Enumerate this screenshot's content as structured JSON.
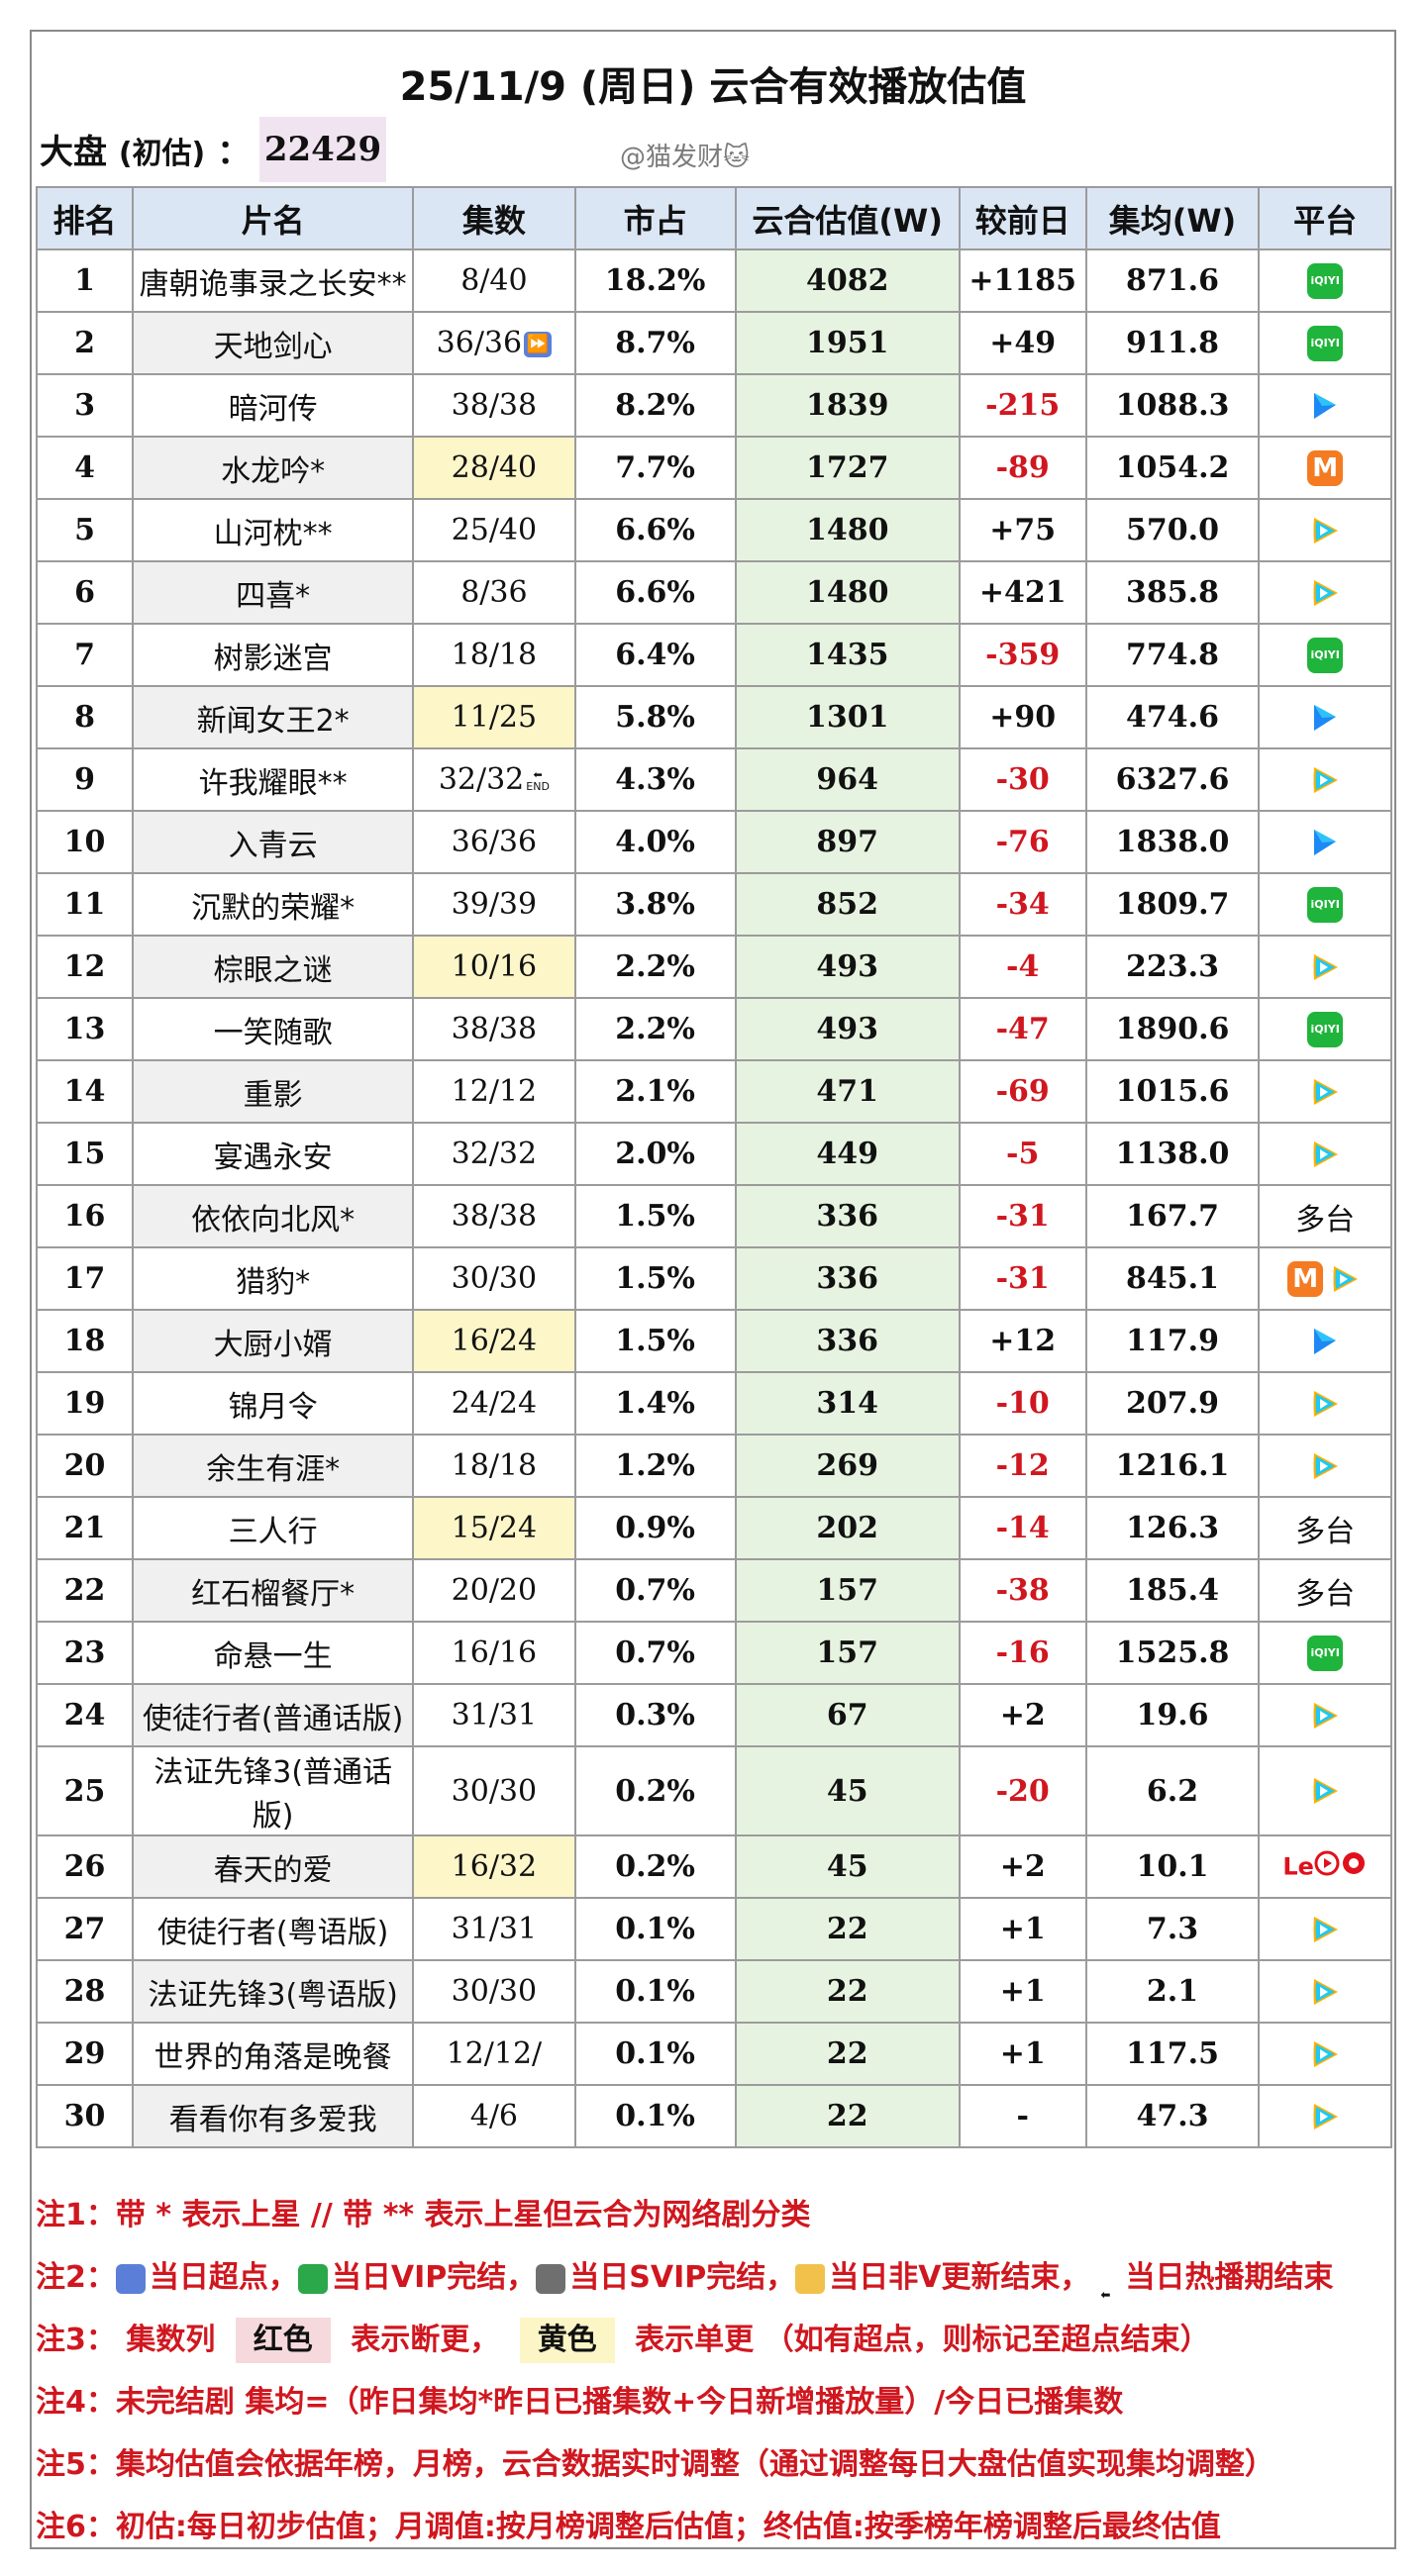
{
  "header": {
    "title": "25/11/9 (周日) 云合有效播放估值",
    "dapan_label": "大盘",
    "dapan_sub": "(初估)",
    "dapan_colon": "：",
    "dapan_value": "22429",
    "watermark": "@猫发财🐱"
  },
  "table": {
    "headers": [
      "排名",
      "片名",
      "集数",
      "市占",
      "云合估值(W)",
      "较前日",
      "集均(W)",
      "平台"
    ],
    "rows": [
      {
        "rank": "1",
        "name": "唐朝诡事录之长安**",
        "eps": "8/40",
        "eps_mark": "",
        "eps_hl": "",
        "share": "18.2%",
        "est": "4082",
        "change": "+1185",
        "neg": false,
        "avg": "871.6",
        "platform": [
          "iqiyi"
        ]
      },
      {
        "rank": "2",
        "name": "天地剑心",
        "eps": "36/36",
        "eps_mark": "⏩",
        "eps_hl": "",
        "share": "8.7%",
        "est": "1951",
        "change": "+49",
        "neg": false,
        "avg": "911.8",
        "platform": [
          "iqiyi"
        ]
      },
      {
        "rank": "3",
        "name": "暗河传",
        "eps": "38/38",
        "eps_mark": "",
        "eps_hl": "",
        "share": "8.2%",
        "est": "1839",
        "change": "-215",
        "neg": true,
        "avg": "1088.3",
        "platform": [
          "youku"
        ]
      },
      {
        "rank": "4",
        "name": "水龙吟*",
        "eps": "28/40",
        "eps_mark": "",
        "eps_hl": "yellow",
        "share": "7.7%",
        "est": "1727",
        "change": "-89",
        "neg": true,
        "avg": "1054.2",
        "platform": [
          "mango"
        ]
      },
      {
        "rank": "5",
        "name": "山河枕**",
        "eps": "25/40",
        "eps_mark": "",
        "eps_hl": "",
        "share": "6.6%",
        "est": "1480",
        "change": "+75",
        "neg": false,
        "avg": "570.0",
        "platform": [
          "tencent"
        ]
      },
      {
        "rank": "6",
        "name": "四喜*",
        "eps": "8/36",
        "eps_mark": "",
        "eps_hl": "",
        "share": "6.6%",
        "est": "1480",
        "change": "+421",
        "neg": false,
        "avg": "385.8",
        "platform": [
          "tencent"
        ]
      },
      {
        "rank": "7",
        "name": "树影迷宫",
        "eps": "18/18",
        "eps_mark": "",
        "eps_hl": "",
        "share": "6.4%",
        "est": "1435",
        "change": "-359",
        "neg": true,
        "avg": "774.8",
        "platform": [
          "iqiyi"
        ]
      },
      {
        "rank": "8",
        "name": "新闻女王2*",
        "eps": "11/25",
        "eps_mark": "",
        "eps_hl": "yellow",
        "share": "5.8%",
        "est": "1301",
        "change": "+90",
        "neg": false,
        "avg": "474.6",
        "platform": [
          "youku"
        ]
      },
      {
        "rank": "9",
        "name": "许我耀眼**",
        "eps": "32/32",
        "eps_mark": "END",
        "eps_hl": "",
        "share": "4.3%",
        "est": "964",
        "change": "-30",
        "neg": true,
        "avg": "6327.6",
        "platform": [
          "tencent"
        ]
      },
      {
        "rank": "10",
        "name": "入青云",
        "eps": "36/36",
        "eps_mark": "",
        "eps_hl": "",
        "share": "4.0%",
        "est": "897",
        "change": "-76",
        "neg": true,
        "avg": "1838.0",
        "platform": [
          "youku"
        ]
      },
      {
        "rank": "11",
        "name": "沉默的荣耀*",
        "eps": "39/39",
        "eps_mark": "",
        "eps_hl": "",
        "share": "3.8%",
        "est": "852",
        "change": "-34",
        "neg": true,
        "avg": "1809.7",
        "platform": [
          "iqiyi"
        ]
      },
      {
        "rank": "12",
        "name": "棕眼之谜",
        "eps": "10/16",
        "eps_mark": "",
        "eps_hl": "yellow",
        "share": "2.2%",
        "est": "493",
        "change": "-4",
        "neg": true,
        "avg": "223.3",
        "platform": [
          "tencent"
        ]
      },
      {
        "rank": "13",
        "name": "一笑随歌",
        "eps": "38/38",
        "eps_mark": "",
        "eps_hl": "",
        "share": "2.2%",
        "est": "493",
        "change": "-47",
        "neg": true,
        "avg": "1890.6",
        "platform": [
          "iqiyi"
        ]
      },
      {
        "rank": "14",
        "name": "重影",
        "eps": "12/12",
        "eps_mark": "",
        "eps_hl": "",
        "share": "2.1%",
        "est": "471",
        "change": "-69",
        "neg": true,
        "avg": "1015.6",
        "platform": [
          "tencent"
        ]
      },
      {
        "rank": "15",
        "name": "宴遇永安",
        "eps": "32/32",
        "eps_mark": "",
        "eps_hl": "",
        "share": "2.0%",
        "est": "449",
        "change": "-5",
        "neg": true,
        "avg": "1138.0",
        "platform": [
          "tencent"
        ]
      },
      {
        "rank": "16",
        "name": "依依向北风*",
        "eps": "38/38",
        "eps_mark": "",
        "eps_hl": "",
        "share": "1.5%",
        "est": "336",
        "change": "-31",
        "neg": true,
        "avg": "167.7",
        "platform_text": "多台"
      },
      {
        "rank": "17",
        "name": "猎豹*",
        "eps": "30/30",
        "eps_mark": "",
        "eps_hl": "",
        "share": "1.5%",
        "est": "336",
        "change": "-31",
        "neg": true,
        "avg": "845.1",
        "platform": [
          "mango",
          "tencent"
        ]
      },
      {
        "rank": "18",
        "name": "大厨小婿",
        "eps": "16/24",
        "eps_mark": "",
        "eps_hl": "yellow",
        "share": "1.5%",
        "est": "336",
        "change": "+12",
        "neg": false,
        "avg": "117.9",
        "platform": [
          "youku"
        ]
      },
      {
        "rank": "19",
        "name": "锦月令",
        "eps": "24/24",
        "eps_mark": "",
        "eps_hl": "",
        "share": "1.4%",
        "est": "314",
        "change": "-10",
        "neg": true,
        "avg": "207.9",
        "platform": [
          "tencent"
        ]
      },
      {
        "rank": "20",
        "name": "余生有涯*",
        "eps": "18/18",
        "eps_mark": "",
        "eps_hl": "",
        "share": "1.2%",
        "est": "269",
        "change": "-12",
        "neg": true,
        "avg": "1216.1",
        "platform": [
          "tencent"
        ]
      },
      {
        "rank": "21",
        "name": "三人行",
        "eps": "15/24",
        "eps_mark": "",
        "eps_hl": "yellow",
        "share": "0.9%",
        "est": "202",
        "change": "-14",
        "neg": true,
        "avg": "126.3",
        "platform_text": "多台"
      },
      {
        "rank": "22",
        "name": "红石榴餐厅*",
        "eps": "20/20",
        "eps_mark": "",
        "eps_hl": "",
        "share": "0.7%",
        "est": "157",
        "change": "-38",
        "neg": true,
        "avg": "185.4",
        "platform_text": "多台"
      },
      {
        "rank": "23",
        "name": "命悬一生",
        "eps": "16/16",
        "eps_mark": "",
        "eps_hl": "",
        "share": "0.7%",
        "est": "157",
        "change": "-16",
        "neg": true,
        "avg": "1525.8",
        "platform": [
          "iqiyi"
        ]
      },
      {
        "rank": "24",
        "name": "使徒行者(普通话版)",
        "eps": "31/31",
        "eps_mark": "",
        "eps_hl": "",
        "share": "0.3%",
        "est": "67",
        "change": "+2",
        "neg": false,
        "avg": "19.6",
        "platform": [
          "tencent"
        ]
      },
      {
        "rank": "25",
        "name": "法证先锋3(普通话版)",
        "eps": "30/30",
        "eps_mark": "",
        "eps_hl": "",
        "share": "0.2%",
        "est": "45",
        "change": "-20",
        "neg": true,
        "avg": "6.2",
        "platform": [
          "tencent"
        ]
      },
      {
        "rank": "26",
        "name": "春天的爱",
        "eps": "16/32",
        "eps_mark": "",
        "eps_hl": "yellow",
        "share": "0.2%",
        "est": "45",
        "change": "+2",
        "neg": false,
        "avg": "10.1",
        "platform": [
          "le",
          "play-red",
          "ring-red"
        ]
      },
      {
        "rank": "27",
        "name": "使徒行者(粤语版)",
        "eps": "31/31",
        "eps_mark": "",
        "eps_hl": "",
        "share": "0.1%",
        "est": "22",
        "change": "+1",
        "neg": false,
        "avg": "7.3",
        "platform": [
          "tencent"
        ]
      },
      {
        "rank": "28",
        "name": "法证先锋3(粤语版)",
        "eps": "30/30",
        "eps_mark": "",
        "eps_hl": "",
        "share": "0.1%",
        "est": "22",
        "change": "+1",
        "neg": false,
        "avg": "2.1",
        "platform": [
          "tencent"
        ]
      },
      {
        "rank": "29",
        "name": "世界的角落是晚餐",
        "eps": "12/12/",
        "eps_mark": "",
        "eps_hl": "",
        "share": "0.1%",
        "est": "22",
        "change": "+1",
        "neg": false,
        "avg": "117.5",
        "platform": [
          "tencent"
        ]
      },
      {
        "rank": "30",
        "name": "看看你有多爱我",
        "eps": "4/6",
        "eps_mark": "",
        "eps_hl": "",
        "share": "0.1%",
        "est": "22",
        "change": "-",
        "neg": false,
        "avg": "47.3",
        "platform": [
          "tencent"
        ]
      }
    ]
  },
  "notes": {
    "n1": "注1：带 * 表示上星 // 带 ** 表示上星但云合为网络剧分类",
    "n2_label": "注2：",
    "n2_a": "当日超点，",
    "n2_b": "当日VIP完结，",
    "n2_c": "当日SVIP完结，",
    "n2_d": "当日非V更新结束，",
    "n2_e": "当日热播期结束",
    "n3_label": "注3：",
    "n3_a": "集数列",
    "n3_red": "红色",
    "n3_b": "表示断更，",
    "n3_yellow": "黄色",
    "n3_c": "表示单更 （如有超点，则标记至超点结束）",
    "n4": "注4：未完结剧 集均=（昨日集均*昨日已播集数+今日新增播放量）/今日已播集数",
    "n5": "注5：集均估值会依据年榜，月榜，云合数据实时调整（通过调整每日大盘估值实现集均调整）",
    "n6": "注6：初估:每日初步估值；月调值:按月榜调整后估值；终估值:按季榜年榜调整后最终估值"
  },
  "colors": {
    "header_bg": "#dbe6f4",
    "est_bg": "#e7f3e1",
    "negative": "#d0171f",
    "single_update_yellow": "#fdf6c8",
    "dapan_bg": "#f1e4f1"
  }
}
